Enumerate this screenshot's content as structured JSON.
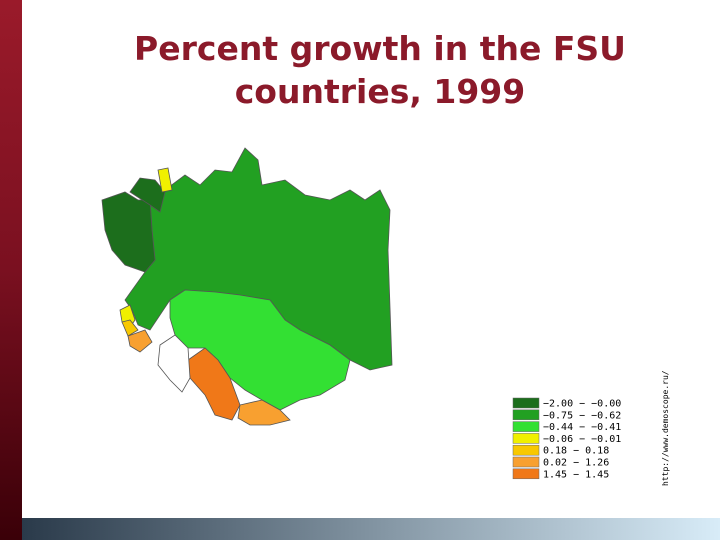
{
  "header": {
    "title_lines": [
      "Percent growth in the FSU",
      "countries, 1999"
    ]
  },
  "legend": {
    "items": [
      {
        "label": "−2.00 − −0.00",
        "color": "#1c6e1c"
      },
      {
        "label": "−0.75 − −0.62",
        "color": "#22a022"
      },
      {
        "label": "−0.44 − −0.41",
        "color": "#33e033"
      },
      {
        "label": "−0.06 − −0.01",
        "color": "#f0f000"
      },
      {
        "label": "0.18 − 0.18",
        "color": "#f8c800"
      },
      {
        "label": "0.02 − 1.26",
        "color": "#f8a030"
      },
      {
        "label": "1.45 − 1.45",
        "color": "#f07818"
      }
    ]
  },
  "source": "http://www.demoscope.ru/"
}
